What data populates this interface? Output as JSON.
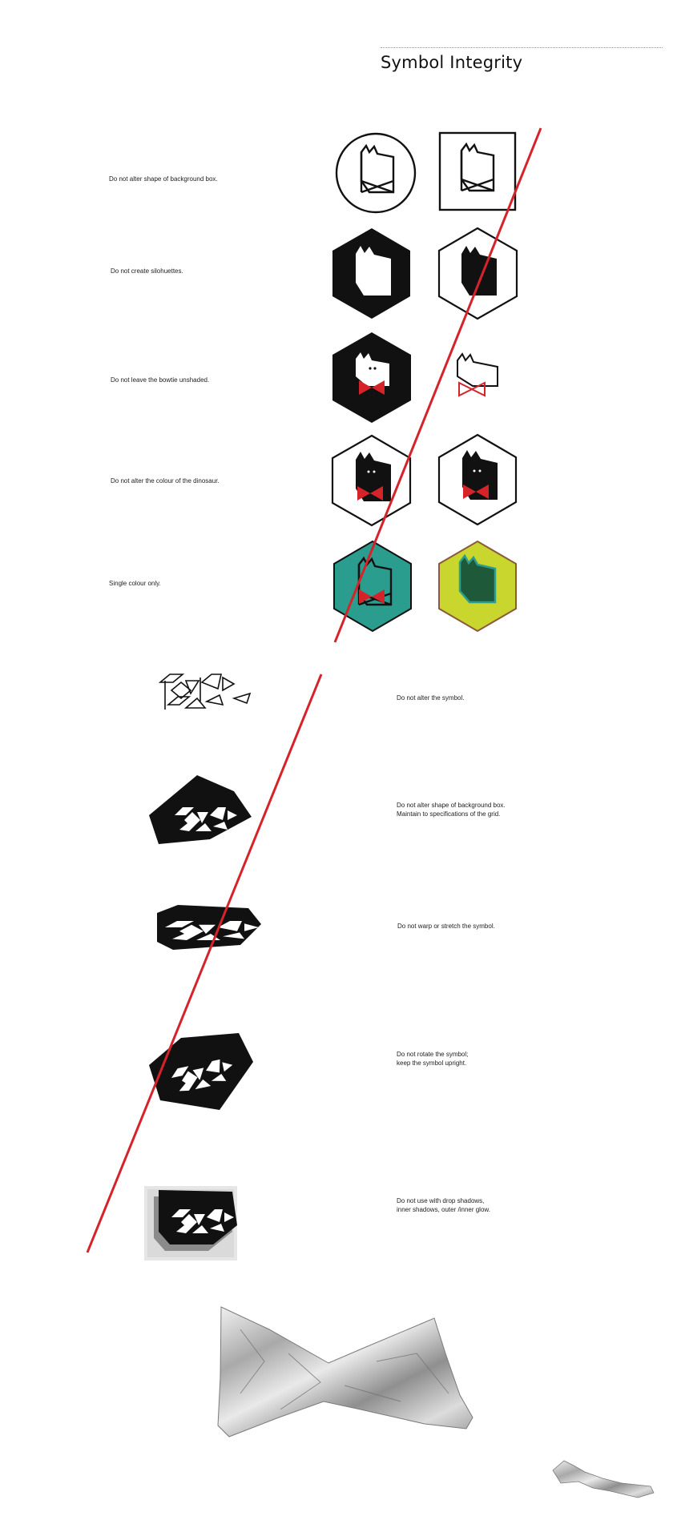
{
  "section": {
    "title": "Symbol Integrity"
  },
  "rules": [
    {
      "label": "Do not alter shape of background box."
    },
    {
      "label": "Do not create silohuettes."
    },
    {
      "label": "Do not leave the bowtie unshaded."
    },
    {
      "label": "Do not alter the colour of the dinosaur."
    },
    {
      "label": "Single colour only."
    },
    {
      "label": "Do not alter the symbol."
    },
    {
      "label": "Do not alter shape of background box.\nMaintain to specifications of the grid."
    },
    {
      "label": "Do not warp or stretch the symbol."
    },
    {
      "label": "Do not rotate the symbol;\nkeep the symbol upright."
    },
    {
      "label": "Do not use with drop shadows,\ninner shadows, outer /inner glow."
    }
  ],
  "colors": {
    "strike": "#d6232a",
    "teal": "#2a9d8f",
    "lime": "#c8d62e",
    "bowtie_red": "#d6232a",
    "dark_green": "#1e5a3a",
    "brown_border": "#8a5a3a"
  },
  "icons": [
    "dinosaur-head-icon",
    "bowtie-icon",
    "refle-wordmark-icon",
    "foil-bowtie-photo"
  ]
}
